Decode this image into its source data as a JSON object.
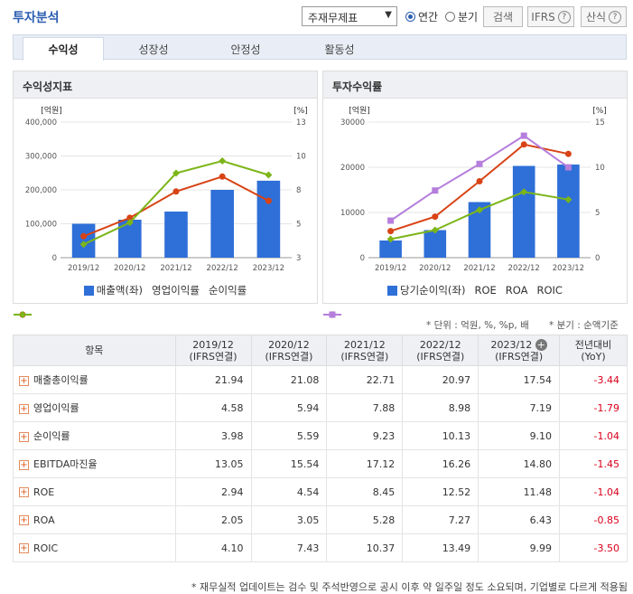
{
  "header": {
    "title": "투자분석",
    "select_value": "주재무제표",
    "radio_annual": "연간",
    "radio_quarter": "분기",
    "search_label": "검색",
    "ifrs_label": "IFRS",
    "formula_label": "산식"
  },
  "tabs": [
    "수익성",
    "성장성",
    "안정성",
    "활동성"
  ],
  "left_panel": {
    "title": "수익성지표"
  },
  "right_panel": {
    "title": "투자수익률"
  },
  "notes": {
    "unit": "* 단위 : 억원, %, %p, 배",
    "quarter": "* 분기 : 순액기준"
  },
  "table": {
    "header_item": "항목",
    "periods": [
      {
        "year": "2019/12",
        "std": "(IFRS연결)"
      },
      {
        "year": "2020/12",
        "std": "(IFRS연결)"
      },
      {
        "year": "2021/12",
        "std": "(IFRS연결)"
      },
      {
        "year": "2022/12",
        "std": "(IFRS연결)"
      },
      {
        "year": "2023/12",
        "std": "(IFRS연결)"
      }
    ],
    "yoy_header": "전년대비",
    "yoy_sub": "(YoY)",
    "rows": [
      {
        "label": "매출총이익률",
        "values": [
          "21.94",
          "21.08",
          "22.71",
          "20.97",
          "17.54"
        ],
        "yoy": "-3.44"
      },
      {
        "label": "영업이익률",
        "values": [
          "4.58",
          "5.94",
          "7.88",
          "8.98",
          "7.19"
        ],
        "yoy": "-1.79"
      },
      {
        "label": "순이익률",
        "values": [
          "3.98",
          "5.59",
          "9.23",
          "10.13",
          "9.10"
        ],
        "yoy": "-1.04"
      },
      {
        "label": "EBITDA마진율",
        "values": [
          "13.05",
          "15.54",
          "17.12",
          "16.26",
          "14.80"
        ],
        "yoy": "-1.45"
      },
      {
        "label": "ROE",
        "values": [
          "2.94",
          "4.54",
          "8.45",
          "12.52",
          "11.48"
        ],
        "yoy": "-1.04"
      },
      {
        "label": "ROA",
        "values": [
          "2.05",
          "3.05",
          "5.28",
          "7.27",
          "6.43"
        ],
        "yoy": "-0.85"
      },
      {
        "label": "ROIC",
        "values": [
          "4.10",
          "7.43",
          "10.37",
          "13.49",
          "9.99"
        ],
        "yoy": "-3.50"
      }
    ]
  },
  "footer": "* 재무실적 업데이트는 검수 및 주석반영으로 공시 이후 약 일주일 정도 소요되며, 기업별로 다르게 적용됨",
  "colors": {
    "bar": "#2e6fd8",
    "red": "#d84315",
    "green": "#7cb518",
    "purple": "#b57edc"
  },
  "chart_data": [
    {
      "type": "bar",
      "title": "수익성지표",
      "categories": [
        "2019/12",
        "2020/12",
        "2021/12",
        "2022/12",
        "2023/12"
      ],
      "left_unit": "[억원]",
      "right_unit": "[%]",
      "left_ticks": [
        "400,000",
        "300,000",
        "200,000",
        "100,000",
        "0"
      ],
      "right_ticks": [
        "13",
        "10",
        "8",
        "5",
        "3"
      ],
      "ylim": [
        0,
        400000
      ],
      "y2lim": [
        3,
        13
      ],
      "series": [
        {
          "name": "매출액(좌)",
          "kind": "bar",
          "axis": "left",
          "values": [
            100000,
            112000,
            136000,
            200000,
            227000
          ]
        },
        {
          "name": "영업이익률",
          "kind": "line",
          "axis": "right",
          "marker": "circle",
          "values": [
            4.58,
            5.94,
            7.88,
            8.98,
            7.19
          ]
        },
        {
          "name": "순이익률",
          "kind": "line",
          "axis": "right",
          "marker": "diamond",
          "values": [
            3.98,
            5.59,
            9.23,
            10.13,
            9.1
          ]
        }
      ]
    },
    {
      "type": "bar",
      "title": "투자수익률",
      "categories": [
        "2019/12",
        "2020/12",
        "2021/12",
        "2022/12",
        "2023/12"
      ],
      "left_unit": "[억원]",
      "right_unit": "[%]",
      "left_ticks": [
        "30000",
        "20000",
        "10000",
        "0"
      ],
      "right_ticks": [
        "15",
        "10",
        "5",
        "0"
      ],
      "ylim": [
        0,
        30000
      ],
      "y2lim": [
        0,
        15
      ],
      "series": [
        {
          "name": "당기순이익(좌)",
          "kind": "bar",
          "axis": "left",
          "values": [
            3800,
            6100,
            12300,
            20300,
            20600
          ]
        },
        {
          "name": "ROE",
          "kind": "line",
          "axis": "right",
          "marker": "circle",
          "values": [
            2.94,
            4.54,
            8.45,
            12.52,
            11.48
          ]
        },
        {
          "name": "ROA",
          "kind": "line",
          "axis": "right",
          "marker": "diamond",
          "values": [
            2.05,
            3.05,
            5.28,
            7.27,
            6.43
          ]
        },
        {
          "name": "ROIC",
          "kind": "line",
          "axis": "right",
          "marker": "square",
          "values": [
            4.1,
            7.43,
            10.37,
            13.49,
            9.99
          ]
        }
      ]
    }
  ]
}
